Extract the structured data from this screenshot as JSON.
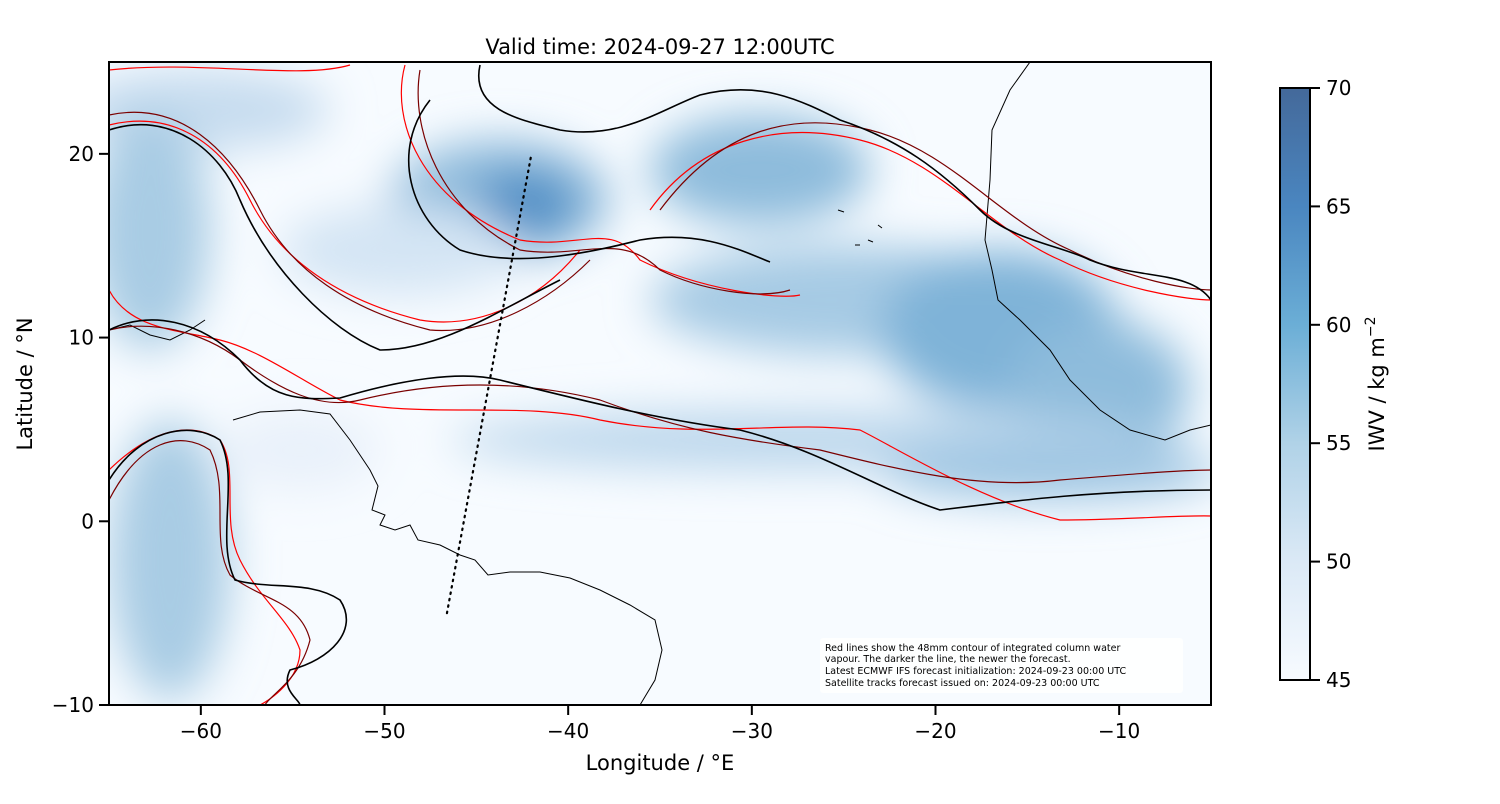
{
  "chart_data": {
    "type": "map",
    "title": "Valid time: 2024-09-27 12:00UTC",
    "xlabel": "Longitude / °E",
    "ylabel": "Latitude / °N",
    "xlim": [
      -65,
      -5
    ],
    "ylim": [
      -10,
      25
    ],
    "xticks": [
      -60,
      -50,
      -40,
      -30,
      -20,
      -10
    ],
    "xtick_labels": [
      "−60",
      "−50",
      "−40",
      "−30",
      "−20",
      "−10"
    ],
    "yticks": [
      20,
      10,
      0,
      -10
    ],
    "ytick_labels": [
      "20",
      "10",
      "0",
      "−10"
    ],
    "field": "IWV",
    "colorbar": {
      "label": "IWV / kg m",
      "label_exponent": "−2",
      "range": [
        45,
        70
      ],
      "ticks": [
        70,
        65,
        60,
        55,
        50,
        45
      ],
      "tick_labels": [
        "70",
        "65",
        "60",
        "55",
        "50",
        "45"
      ],
      "colormap": "Blues",
      "color_low": "#f7fbff",
      "color_high": "#44699a"
    },
    "contour_level_mm": 48,
    "contour_colors": [
      "#ff0000",
      "#a00000",
      "#4a0000",
      "#000000"
    ],
    "satellite_track": {
      "style": "dotted",
      "color": "#000000",
      "start": {
        "lon": -46.6,
        "lat": -5
      },
      "end": {
        "lon": -42,
        "lat": 20
      }
    },
    "annotation": [
      "Red lines show the 48mm contour of integrated column water",
      "vapour. The darker the line, the newer the forecast.",
      "Latest ECMWF IFS forecast initialization: 2024-09-23 00:00 UTC",
      "Satellite tracks forecast issued on: 2024-09-23 00:00 UTC"
    ]
  }
}
